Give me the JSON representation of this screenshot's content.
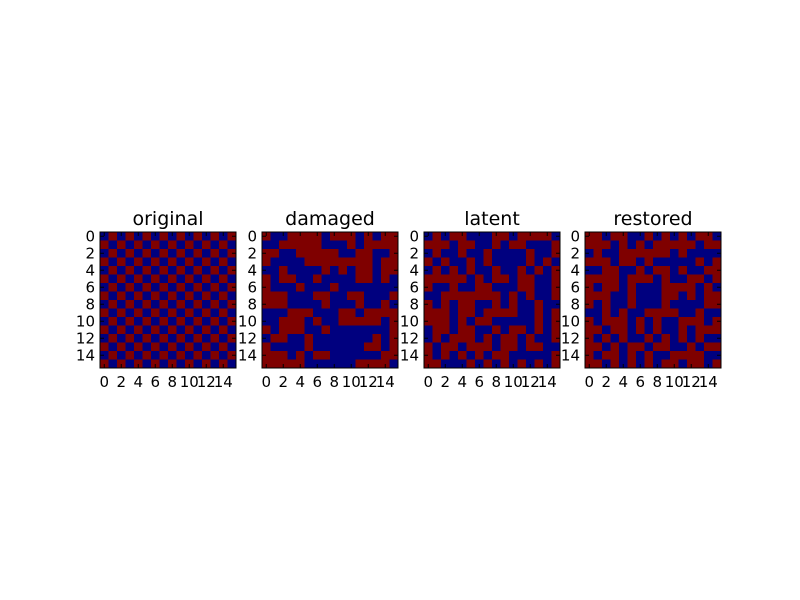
{
  "colors": {
    "zero": "#00007f",
    "one": "#7f0000",
    "frame": "#000000",
    "background": "#ffffff"
  },
  "chart_data": [
    {
      "type": "heatmap",
      "title": "original",
      "xlabel": "",
      "ylabel": "",
      "xticks": [
        "0",
        "2",
        "4",
        "6",
        "8",
        "10",
        "12",
        "14"
      ],
      "yticks": [
        "0",
        "2",
        "4",
        "6",
        "8",
        "10",
        "12",
        "14"
      ],
      "xlim": [
        -0.5,
        15.5
      ],
      "ylim": [
        15.5,
        -0.5
      ],
      "values": [
        "0101010101010101",
        "1010101010101010",
        "0101010101010101",
        "1010101010101010",
        "0101010101010101",
        "1010101010101010",
        "0101010101010101",
        "1010101010101010",
        "0101010101010101",
        "1010101010101010",
        "0101010101010101",
        "1010101010101010",
        "0101010101010101",
        "1010101010101010",
        "0101010101010101",
        "1010101010101010"
      ]
    },
    {
      "type": "heatmap",
      "title": "damaged",
      "xlabel": "",
      "ylabel": "",
      "xticks": [
        "0",
        "2",
        "4",
        "6",
        "8",
        "10",
        "12",
        "14"
      ],
      "yticks": [
        "0",
        "2",
        "4",
        "6",
        "8",
        "10",
        "12",
        "14"
      ],
      "xlim": [
        -0.5,
        15.5
      ],
      "ylim": [
        15.5,
        -0.5
      ],
      "values": [
        "1001111011101011",
        "0011111000101111",
        "1100111110011001",
        "1000011111111011",
        "0010000101011011",
        "1011001000011010",
        "1000100010000000",
        "1110001100110001",
        "1110000100010010",
        "0001110001101111",
        "0011101001111101",
        "1011100100000001",
        "0110010000000101",
        "1000010000001101",
        "1110101100000011",
        "1111100000011110"
      ]
    },
    {
      "type": "heatmap",
      "title": "latent",
      "xlabel": "",
      "ylabel": "",
      "xticks": [
        "0",
        "2",
        "4",
        "6",
        "8",
        "10",
        "12",
        "14"
      ],
      "yticks": [
        "0",
        "2",
        "4",
        "6",
        "8",
        "10",
        "12",
        "14"
      ],
      "xlim": [
        -0.5,
        15.5
      ],
      "ylim": [
        15.5,
        -0.5
      ],
      "values": [
        "0101100011011110",
        "1110110010110001",
        "0100100100001001",
        "1010010100001010",
        "0101010010010101",
        "1111101011011001",
        "1001001100011001",
        "0011111110101001",
        "1010110010100100",
        "1110110111100101",
        "1110101100000101",
        "0110110010110101",
        "0101110101101001",
        "1011011101101100",
        "1010101011000001",
        "1100010101010101"
      ]
    },
    {
      "type": "heatmap",
      "title": "restored",
      "xlabel": "",
      "ylabel": "",
      "xticks": [
        "0",
        "2",
        "4",
        "6",
        "8",
        "10",
        "12",
        "14"
      ],
      "yticks": [
        "0",
        "2",
        "4",
        "6",
        "8",
        "10",
        "12",
        "14"
      ],
      "xlim": [
        -0.5,
        15.5
      ],
      "ylim": [
        15.5,
        -0.5
      ],
      "values": [
        "1101100101010110",
        "1110101011111011",
        "0100111111010000",
        "1110110100000101",
        "0011001011010011",
        "1111011101001101",
        "1011010001111010",
        "1110010001101011",
        "1010010001000011",
        "0010100111100100",
        "1011101010011101",
        "1101101010010111",
        "1010100101010100",
        "1101011011001011",
        "1011010100111100",
        "1101010101101101"
      ]
    }
  ]
}
